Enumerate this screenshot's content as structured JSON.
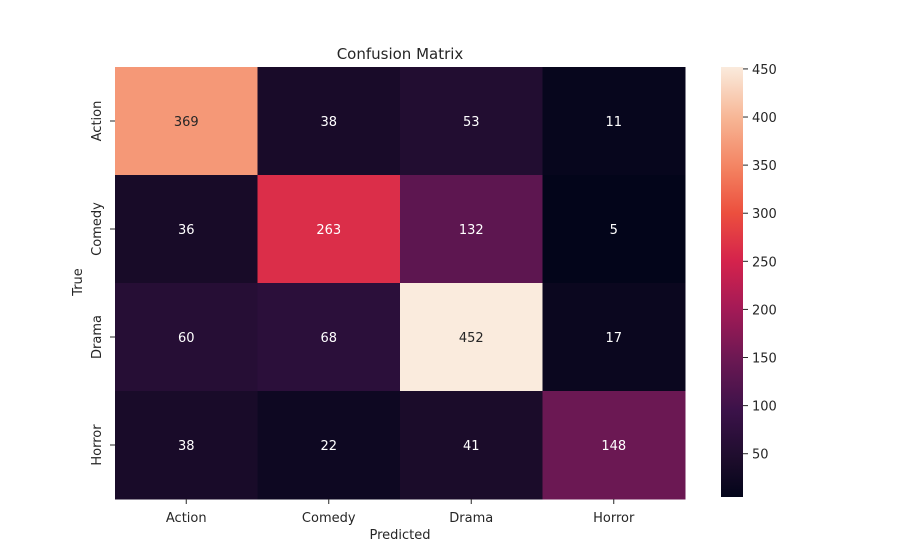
{
  "chart_data": {
    "type": "heatmap",
    "title": "Confusion Matrix",
    "xlabel": "Predicted",
    "ylabel": "True",
    "x_categories": [
      "Action",
      "Comedy",
      "Drama",
      "Horror"
    ],
    "y_categories": [
      "Action",
      "Comedy",
      "Drama",
      "Horror"
    ],
    "values": [
      [
        369,
        38,
        53,
        11
      ],
      [
        36,
        263,
        132,
        5
      ],
      [
        60,
        68,
        452,
        17
      ],
      [
        38,
        22,
        41,
        148
      ]
    ],
    "value_range": [
      5,
      452
    ],
    "colormap": "rocket",
    "colorbar_ticks": [
      "50",
      "100",
      "150",
      "200",
      "250",
      "300",
      "350",
      "400",
      "450"
    ],
    "colorbar_tick_values": [
      50,
      100,
      150,
      200,
      250,
      300,
      350,
      400,
      450
    ],
    "grid": false,
    "colorbar_position": "right"
  }
}
